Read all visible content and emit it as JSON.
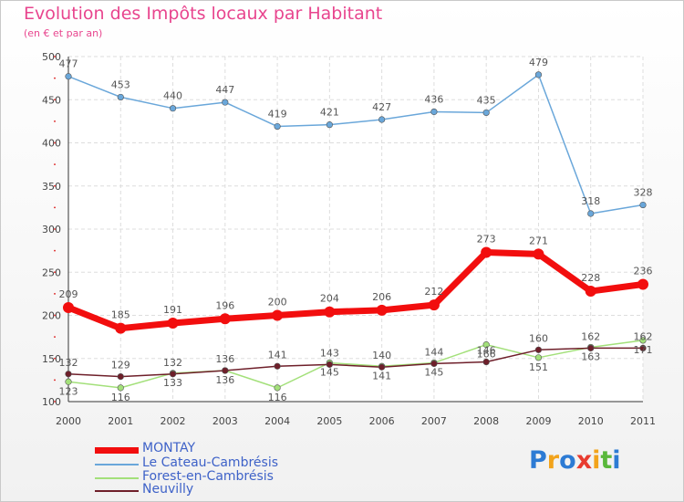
{
  "chart_data": {
    "type": "line",
    "title": "Evolution des Impôts locaux par Habitant",
    "subtitle": "(en € et par an)",
    "xlabel": "",
    "ylabel": "",
    "ylim": [
      100,
      500
    ],
    "yticks": [
      100,
      150,
      200,
      250,
      300,
      350,
      400,
      450,
      500
    ],
    "categories": [
      "2000",
      "2001",
      "2002",
      "2003",
      "2004",
      "2005",
      "2006",
      "2007",
      "2008",
      "2009",
      "2010",
      "2011"
    ],
    "grid": true,
    "legend_position": "bottom-left",
    "series": [
      {
        "name": "MONTAY",
        "color": "#f20e0e",
        "values": [
          209,
          185,
          191,
          196,
          200,
          204,
          206,
          212,
          273,
          271,
          228,
          236
        ],
        "labels": [
          "209",
          "185",
          "191",
          "196",
          "200",
          "204",
          "206",
          "212",
          "273",
          "271",
          "228",
          "236"
        ]
      },
      {
        "name": "Le Cateau-Cambrésis",
        "color": "#6aa7da",
        "values": [
          477,
          453,
          440,
          447,
          419,
          421,
          427,
          436,
          435,
          479,
          318,
          328
        ],
        "labels": [
          "477",
          "453",
          "440",
          "447",
          "419",
          "421",
          "427",
          "436",
          "435",
          "479",
          "318",
          "328"
        ]
      },
      {
        "name": "Forest-en-Cambrésis",
        "color": "#a3e07a",
        "values": [
          123,
          116,
          133,
          136,
          116,
          145,
          141,
          145,
          166,
          151,
          163,
          171
        ],
        "labels": [
          "123",
          "116",
          "133",
          "136",
          "116",
          "145",
          "141",
          "145",
          "166",
          "151",
          "163",
          "171"
        ]
      },
      {
        "name": "Neuvilly",
        "color": "#6e1f2a",
        "values": [
          132,
          129,
          132,
          136,
          141,
          143,
          140,
          144,
          146,
          160,
          162,
          162
        ],
        "labels": [
          "132",
          "129",
          "132",
          "136",
          "141",
          "143",
          "140",
          "144",
          "146",
          "160",
          "162",
          "162"
        ]
      }
    ]
  },
  "logo": {
    "letters": [
      "P",
      "r",
      "o",
      "x",
      "i",
      "t",
      "i"
    ],
    "colors": [
      "#2d7bd4",
      "#f2a31b",
      "#2d7bd4",
      "#e83b2f",
      "#f2a31b",
      "#5ab83c",
      "#2d7bd4"
    ]
  }
}
